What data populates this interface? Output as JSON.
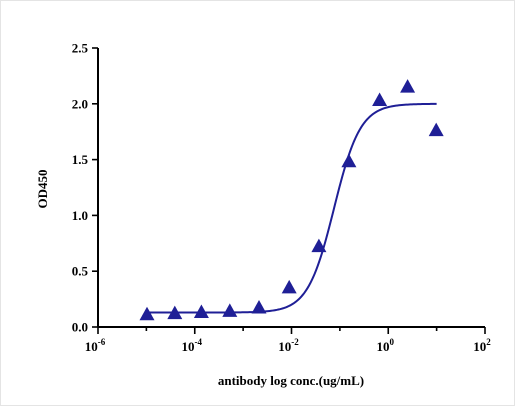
{
  "chart_data": {
    "type": "scatter",
    "title": "",
    "xlabel": "antibody log conc.(ug/mL)",
    "ylabel": "OD450",
    "x_scale": "log10",
    "xlim": [
      1e-06,
      100
    ],
    "ylim": [
      0,
      2.5
    ],
    "x_ticks": [
      {
        "base": "10",
        "exp": "-6",
        "value": 1e-06
      },
      {
        "base": "10",
        "exp": "-4",
        "value": 0.0001
      },
      {
        "base": "10",
        "exp": "-2",
        "value": 0.01
      },
      {
        "base": "10",
        "exp": "0",
        "value": 1
      },
      {
        "base": "10",
        "exp": "2",
        "value": 100
      }
    ],
    "y_ticks": [
      {
        "label": "0.0",
        "value": 0
      },
      {
        "label": "0.5",
        "value": 0.5
      },
      {
        "label": "1.0",
        "value": 1.0
      },
      {
        "label": "1.5",
        "value": 1.5
      },
      {
        "label": "2.0",
        "value": 2.0
      },
      {
        "label": "2.5",
        "value": 2.5
      }
    ],
    "grid": false,
    "marker": "triangle",
    "color": "#1f1f96",
    "points": [
      {
        "x": 1.03e-05,
        "y": 0.11
      },
      {
        "x": 3.86e-05,
        "y": 0.12
      },
      {
        "x": 0.000137,
        "y": 0.13
      },
      {
        "x": 0.000531,
        "y": 0.14
      },
      {
        "x": 0.00213,
        "y": 0.17
      },
      {
        "x": 0.00895,
        "y": 0.35
      },
      {
        "x": 0.0368,
        "y": 0.72
      },
      {
        "x": 0.154,
        "y": 1.48
      },
      {
        "x": 0.664,
        "y": 2.03
      },
      {
        "x": 2.51,
        "y": 2.15
      },
      {
        "x": 9.82,
        "y": 1.76
      }
    ],
    "fit": {
      "model": "4PL",
      "bottom": 0.13,
      "top": 2.0,
      "log_ec50": -1.12,
      "hill": 1.6,
      "x_range": [
        1e-05,
        10
      ]
    }
  }
}
